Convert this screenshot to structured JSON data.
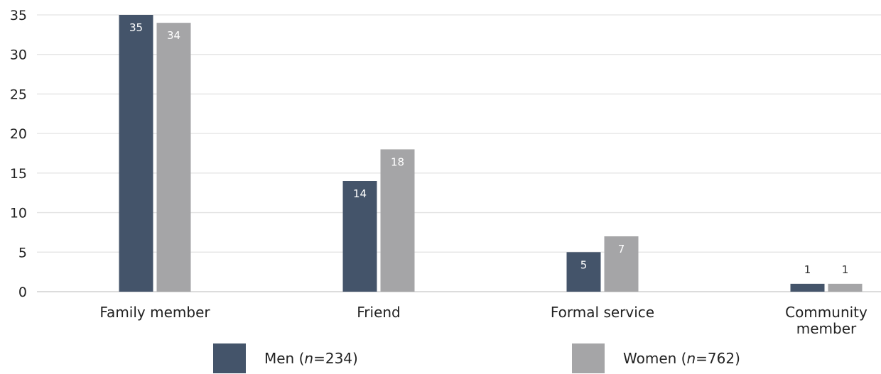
{
  "chart_data": {
    "type": "bar",
    "categories": [
      "Family member",
      "Friend",
      "Formal service",
      "Community member"
    ],
    "category_lines": [
      [
        "Family member"
      ],
      [
        "Friend"
      ],
      [
        "Formal service"
      ],
      [
        "Community",
        "member"
      ]
    ],
    "series": [
      {
        "name": "Men (n=234)",
        "name_prefix": "Men (",
        "name_italic": "n",
        "name_suffix": "=234)",
        "color": "#44546a",
        "label_color": "#ffffff",
        "values": [
          35,
          14,
          5,
          1
        ]
      },
      {
        "name": "Women (n=762)",
        "name_prefix": "Women (",
        "name_italic": "n",
        "name_suffix": "=762)",
        "color": "#a5a5a7",
        "label_color": "#ffffff",
        "values": [
          34,
          18,
          7,
          1
        ]
      }
    ],
    "ylim": [
      0,
      35
    ],
    "yticks": [
      0,
      5,
      10,
      15,
      20,
      25,
      30,
      35
    ],
    "grid": true,
    "legend_position": "bottom",
    "title": "",
    "xlabel": "",
    "ylabel": ""
  }
}
